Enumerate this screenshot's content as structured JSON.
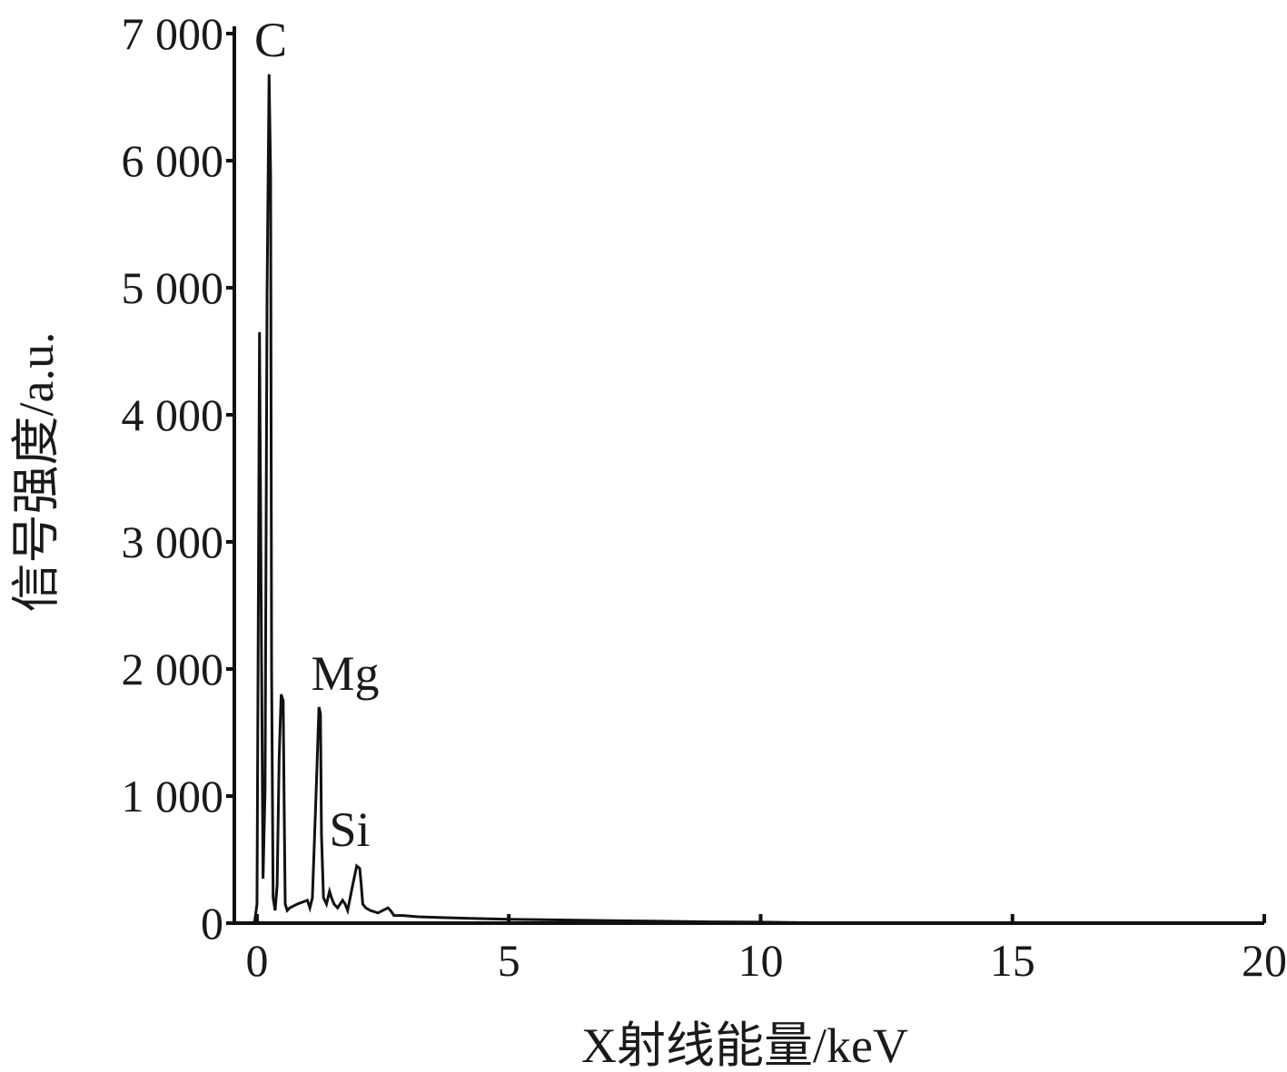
{
  "chart_data": {
    "type": "line",
    "xlabel": "X射线能量/keV",
    "ylabel": "信号强度/a.u.",
    "annotations": [
      "C",
      "Mg",
      "Si"
    ],
    "xlim": [
      -0.45,
      20
    ],
    "ylim": [
      0,
      7000
    ],
    "xticks": [
      0,
      5,
      10,
      15,
      20
    ],
    "yticks": [
      0,
      {
        "value": 1000,
        "label": "1 000"
      },
      {
        "value": 2000,
        "label": "2 000"
      },
      {
        "value": 3000,
        "label": "3 000"
      },
      {
        "value": 4000,
        "label": "4 000"
      },
      {
        "value": 5000,
        "label": "5 000"
      },
      {
        "value": 6000,
        "label": "6 000"
      },
      {
        "value": 7000,
        "label": "7 000"
      }
    ],
    "grid": false,
    "color": "#111111",
    "x": [
      -0.05,
      0.0,
      0.02,
      0.05,
      0.08,
      0.12,
      0.16,
      0.2,
      0.24,
      0.27,
      0.29,
      0.32,
      0.36,
      0.4,
      0.44,
      0.48,
      0.52,
      0.54,
      0.56,
      0.6,
      0.65,
      0.8,
      1.0,
      1.05,
      1.1,
      1.18,
      1.23,
      1.26,
      1.28,
      1.32,
      1.38,
      1.44,
      1.48,
      1.53,
      1.6,
      1.7,
      1.75,
      1.8,
      1.9,
      1.98,
      2.04,
      2.07,
      2.1,
      2.16,
      2.25,
      2.4,
      2.6,
      2.65,
      2.72,
      2.9,
      3.2,
      3.6,
      4.0,
      4.5,
      5.0,
      6.0,
      7.0,
      8.0,
      9.0,
      10.0,
      10.5,
      11.0,
      11.5,
      11.8
    ],
    "values": [
      0,
      150,
      1900,
      4650,
      2700,
      350,
      1050,
      4950,
      6680,
      5900,
      2000,
      200,
      100,
      300,
      1300,
      1800,
      1750,
      900,
      150,
      100,
      120,
      150,
      180,
      120,
      200,
      1100,
      1700,
      1650,
      700,
      200,
      150,
      250,
      200,
      150,
      120,
      180,
      150,
      100,
      300,
      450,
      430,
      300,
      150,
      120,
      100,
      80,
      120,
      100,
      60,
      60,
      50,
      45,
      40,
      35,
      30,
      25,
      20,
      15,
      10,
      8,
      5,
      3,
      2,
      0
    ]
  }
}
